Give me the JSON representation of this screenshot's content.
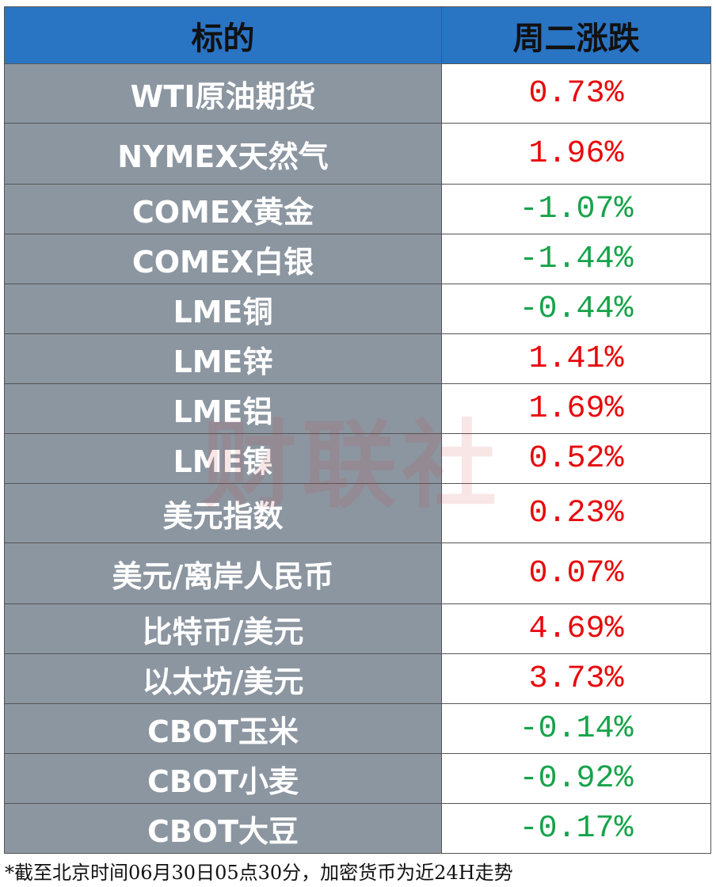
{
  "header": {
    "name": "标的",
    "change": "周二涨跌"
  },
  "table": {
    "rows": [
      [
        "WTI原油期货",
        "0.73%"
      ],
      [
        "NYMEX天然气",
        "1.96%"
      ],
      [
        "COMEX黄金",
        "-1.07%"
      ],
      [
        "COMEX白银",
        "-1.44%"
      ],
      [
        "LME铜",
        "-0.44%"
      ],
      [
        "LME锌",
        "1.41%"
      ],
      [
        "LME铝",
        "1.69%"
      ],
      [
        "LME镍",
        "0.52%"
      ],
      [
        "美元指数",
        "0.23%"
      ],
      [
        "美元/离岸人民币",
        "0.07%"
      ],
      [
        "比特币/美元",
        "4.69%"
      ],
      [
        "以太坊/美元",
        "3.73%"
      ],
      [
        "CBOT玉米",
        "-0.14%"
      ],
      [
        "CBOT小麦",
        "-0.92%"
      ],
      [
        "CBOT大豆",
        "-0.17%"
      ]
    ]
  },
  "watermark": "财联社",
  "footnote": "*截至北京时间06月30日05点30分，加密货币为近24H走势"
}
